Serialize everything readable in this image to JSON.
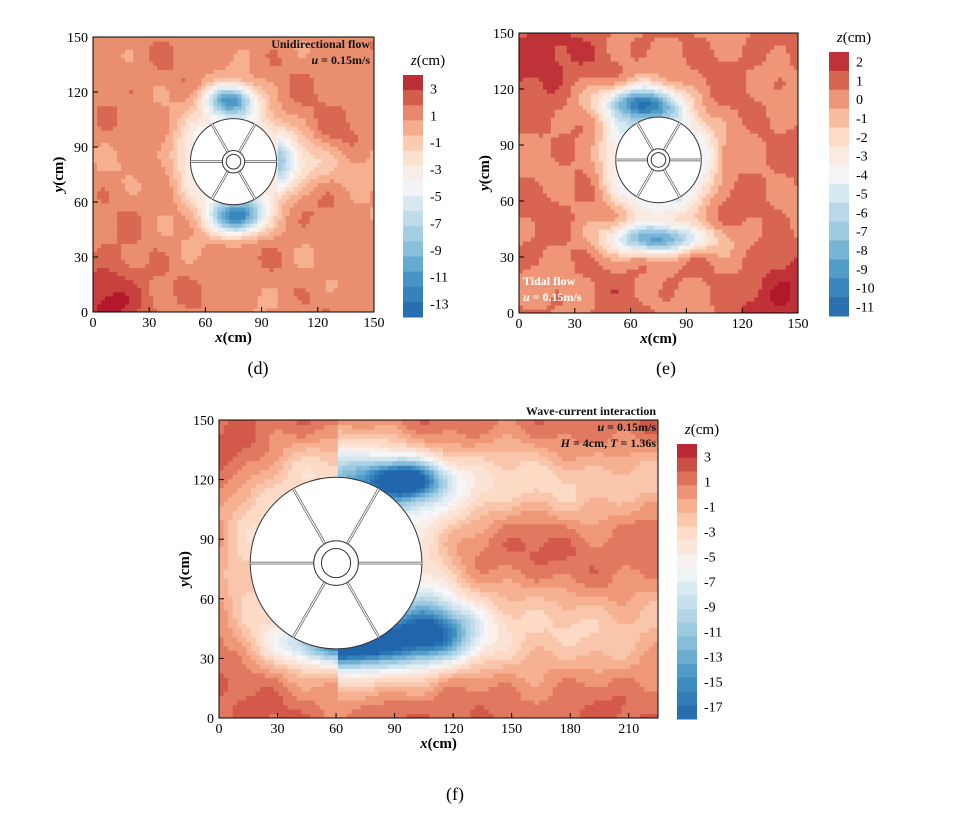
{
  "figure_panels": [
    {
      "label": "(d)",
      "annotation_title": "Unidirectional flow",
      "annotation_speed_var": "u",
      "annotation_speed_value": " = 0.15m/s",
      "annotation_wave_parts": []
    },
    {
      "label": "(e)",
      "annotation_title": "Tidal flow",
      "annotation_speed_var": "u",
      "annotation_speed_value": " = 0.15m/s",
      "annotation_wave_parts": []
    },
    {
      "label": "(f)",
      "annotation_title": "Wave-current interaction",
      "annotation_speed_var": "u",
      "annotation_speed_value": " = 0.15m/s",
      "annotation_wave_parts": [
        "H",
        " = 4cm, ",
        "T",
        " = 1.36s"
      ]
    }
  ],
  "colors": {
    "background": "#ffffff",
    "deposition_high": "#b2182b",
    "deposition_mid": "#e36d52",
    "deposition_low": "#f4a582",
    "neutral": "#f7f7f7",
    "scour_low": "#92c5de",
    "scour_mid": "#4393c3",
    "scour_high": "#2166ac",
    "contour_line": "#000000",
    "structure_fill": "#ffffff"
  },
  "chart_data": [
    {
      "type": "heatmap",
      "subplot": "(d)",
      "title": "Unidirectional flow",
      "xlabel": "x(cm)",
      "ylabel": "y(cm)",
      "xlim": [
        0,
        150
      ],
      "ylim": [
        0,
        150
      ],
      "xticks": [
        0,
        30,
        60,
        90,
        120,
        150
      ],
      "yticks": [
        0,
        30,
        60,
        90,
        120,
        150
      ],
      "colorbar_label": "z(cm)",
      "colorbar_ticks": [
        3,
        1,
        -1,
        -3,
        -5,
        -7,
        -9,
        -11,
        -13
      ],
      "zlim": [
        -14,
        4
      ],
      "pier": {
        "center": [
          75,
          82
        ],
        "radius": 23
      },
      "scour_holes": [
        {
          "x": 73,
          "y": 116,
          "depth": -13,
          "sx": 13,
          "sy": 8
        },
        {
          "x": 77,
          "y": 51,
          "depth": -13,
          "sx": 14,
          "sy": 9
        }
      ],
      "wake_tongue": {
        "x0": 98,
        "y0": 82,
        "depth": -5
      },
      "background_level": 1,
      "deposition_zones": [
        {
          "x": 130,
          "y": 88,
          "height": 2
        },
        {
          "x": 10,
          "y": 8,
          "height": 3
        }
      ]
    },
    {
      "type": "heatmap",
      "subplot": "(e)",
      "title": "Tidal flow",
      "xlabel": "x(cm)",
      "ylabel": "y(cm)",
      "xlim": [
        0,
        150
      ],
      "ylim": [
        0,
        150
      ],
      "xticks": [
        0,
        30,
        60,
        90,
        120,
        150
      ],
      "yticks": [
        0,
        30,
        60,
        90,
        120,
        150
      ],
      "colorbar_label": "z(cm)",
      "colorbar_ticks": [
        2,
        1,
        0,
        -1,
        -2,
        -3,
        -4,
        -5,
        -6,
        -7,
        -8,
        -9,
        -10,
        -11
      ],
      "zlim": [
        -11.5,
        2.5
      ],
      "pier": {
        "center": [
          75,
          82
        ],
        "radius": 23
      },
      "scour_holes": [
        {
          "x": 65,
          "y": 113,
          "depth": -11,
          "sx": 20,
          "sy": 9
        },
        {
          "x": 75,
          "y": 40,
          "depth": -11,
          "sx": 25,
          "sy": 8
        }
      ],
      "background_level": 0.5,
      "deposition_zones": [
        {
          "x": 140,
          "y": 10,
          "height": 2
        },
        {
          "x": 10,
          "y": 140,
          "height": 2
        }
      ]
    },
    {
      "type": "heatmap",
      "subplot": "(f)",
      "title": "Wave-current interaction",
      "xlabel": "x(cm)",
      "ylabel": "y(cm)",
      "xlim": [
        0,
        225
      ],
      "ylim": [
        0,
        150
      ],
      "xticks": [
        0,
        30,
        60,
        90,
        120,
        150,
        180,
        210
      ],
      "yticks": [
        0,
        30,
        60,
        90,
        120,
        150
      ],
      "colorbar_label": "z(cm)",
      "colorbar_ticks": [
        3,
        1,
        -1,
        -3,
        -5,
        -7,
        -9,
        -11,
        -13,
        -15,
        -17
      ],
      "zlim": [
        -18,
        4
      ],
      "pier": {
        "center": [
          60,
          78
        ],
        "radius": 44
      },
      "scour_holes": [
        {
          "x": 95,
          "y": 120,
          "depth": -17,
          "sx": 18,
          "sy": 9
        },
        {
          "x": 65,
          "y": 38,
          "depth": -16,
          "sx": 28,
          "sy": 10
        },
        {
          "x": 110,
          "y": 42,
          "depth": -14,
          "sx": 20,
          "sy": 14
        }
      ],
      "background_level": 1.5,
      "deposition_zones": [
        {
          "x": 160,
          "y": 82,
          "height": 1
        }
      ]
    }
  ]
}
